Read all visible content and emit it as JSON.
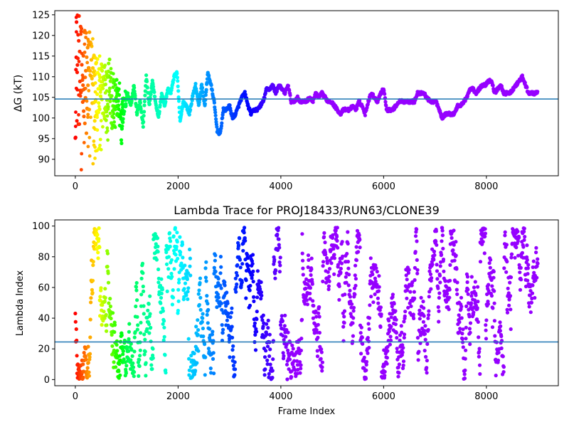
{
  "chart_data": [
    {
      "type": "scatter",
      "title": "",
      "xlabel": "",
      "ylabel": "ΔG (kT)",
      "xlim": [
        -400,
        9400
      ],
      "ylim": [
        86,
        126
      ],
      "xticks": [
        0,
        2000,
        4000,
        6000,
        8000
      ],
      "yticks": [
        90,
        95,
        100,
        105,
        110,
        115,
        120,
        125
      ],
      "hline": 104.6,
      "hline_color": "#1f77b4",
      "colormap": "rainbow (red early frames → violet late frames)",
      "grid": false,
      "trace": [
        [
          0,
          110
        ],
        [
          60,
          112
        ],
        [
          120,
          108
        ],
        [
          180,
          112
        ],
        [
          240,
          106
        ],
        [
          300,
          114
        ],
        [
          360,
          106
        ],
        [
          420,
          108
        ],
        [
          480,
          104
        ],
        [
          540,
          108
        ],
        [
          600,
          104
        ],
        [
          660,
          110
        ],
        [
          720,
          102
        ],
        [
          780,
          106
        ],
        [
          840,
          104
        ],
        [
          900,
          96
        ],
        [
          960,
          104
        ],
        [
          1020,
          106
        ],
        [
          1080,
          103
        ],
        [
          1140,
          108
        ],
        [
          1200,
          101
        ],
        [
          1260,
          104
        ],
        [
          1320,
          98
        ],
        [
          1380,
          110
        ],
        [
          1440,
          103
        ],
        [
          1500,
          109
        ],
        [
          1560,
          104
        ],
        [
          1620,
          100
        ],
        [
          1680,
          106
        ],
        [
          1740,
          103
        ],
        [
          1800,
          107
        ],
        [
          1860,
          106
        ],
        [
          1920,
          110
        ],
        [
          1980,
          111
        ],
        [
          2040,
          99
        ],
        [
          2100,
          104
        ],
        [
          2160,
          103
        ],
        [
          2220,
          101
        ],
        [
          2280,
          105
        ],
        [
          2340,
          108
        ],
        [
          2400,
          103
        ],
        [
          2460,
          108
        ],
        [
          2520,
          103
        ],
        [
          2580,
          111
        ],
        [
          2640,
          108
        ],
        [
          2700,
          104
        ],
        [
          2760,
          97
        ],
        [
          2820,
          96
        ],
        [
          2880,
          102
        ],
        [
          2940,
          102
        ],
        [
          3000,
          103
        ],
        [
          3060,
          100
        ],
        [
          3120,
          101
        ],
        [
          3180,
          103
        ],
        [
          3240,
          105
        ],
        [
          3300,
          106
        ],
        [
          3360,
          103
        ],
        [
          3420,
          101
        ],
        [
          3480,
          102
        ],
        [
          3540,
          102
        ],
        [
          3600,
          103
        ],
        [
          3660,
          104
        ],
        [
          3720,
          107
        ],
        [
          3780,
          107
        ],
        [
          3840,
          108
        ],
        [
          3900,
          106
        ],
        [
          3960,
          108
        ],
        [
          4020,
          107
        ],
        [
          4080,
          106
        ],
        [
          4140,
          108
        ],
        [
          4200,
          104
        ],
        [
          4260,
          104
        ],
        [
          4320,
          105
        ],
        [
          4380,
          104
        ],
        [
          4440,
          104
        ],
        [
          4500,
          104
        ],
        [
          4560,
          105
        ],
        [
          4620,
          104
        ],
        [
          4680,
          106
        ],
        [
          4740,
          105
        ],
        [
          4800,
          106
        ],
        [
          4860,
          105
        ],
        [
          4920,
          104
        ],
        [
          4980,
          104
        ],
        [
          5040,
          103
        ],
        [
          5100,
          102
        ],
        [
          5160,
          101
        ],
        [
          5220,
          102
        ],
        [
          5280,
          102
        ],
        [
          5340,
          102
        ],
        [
          5400,
          103
        ],
        [
          5460,
          102
        ],
        [
          5520,
          104
        ],
        [
          5580,
          103
        ],
        [
          5640,
          101
        ],
        [
          5700,
          104
        ],
        [
          5760,
          106
        ],
        [
          5820,
          105
        ],
        [
          5880,
          104
        ],
        [
          5940,
          106
        ],
        [
          6000,
          107
        ],
        [
          6060,
          102
        ],
        [
          6120,
          102
        ],
        [
          6180,
          102
        ],
        [
          6240,
          103
        ],
        [
          6300,
          104
        ],
        [
          6360,
          104
        ],
        [
          6420,
          104
        ],
        [
          6480,
          104
        ],
        [
          6540,
          104
        ],
        [
          6600,
          104
        ],
        [
          6660,
          106
        ],
        [
          6720,
          106
        ],
        [
          6780,
          106
        ],
        [
          6840,
          105
        ],
        [
          6900,
          104
        ],
        [
          6960,
          104
        ],
        [
          7020,
          104
        ],
        [
          7080,
          102
        ],
        [
          7140,
          100
        ],
        [
          7200,
          101
        ],
        [
          7260,
          101
        ],
        [
          7320,
          101
        ],
        [
          7380,
          101
        ],
        [
          7440,
          103
        ],
        [
          7500,
          103
        ],
        [
          7560,
          104
        ],
        [
          7620,
          105
        ],
        [
          7680,
          107
        ],
        [
          7740,
          107
        ],
        [
          7800,
          106
        ],
        [
          7860,
          107
        ],
        [
          7920,
          108
        ],
        [
          7980,
          108
        ],
        [
          8040,
          109
        ],
        [
          8100,
          109
        ],
        [
          8160,
          106
        ],
        [
          8220,
          107
        ],
        [
          8280,
          108
        ],
        [
          8340,
          106
        ],
        [
          8400,
          106
        ],
        [
          8460,
          106
        ],
        [
          8520,
          107
        ],
        [
          8580,
          108
        ],
        [
          8640,
          109
        ],
        [
          8700,
          110
        ],
        [
          8760,
          108
        ],
        [
          8820,
          106
        ],
        [
          8880,
          106
        ],
        [
          8940,
          106
        ],
        [
          9000,
          106
        ]
      ]
    },
    {
      "type": "scatter",
      "title": "Lambda Trace for PROJ18433/RUN63/CLONE39",
      "xlabel": "Frame Index",
      "ylabel": "Lambda Index",
      "xlim": [
        -400,
        9400
      ],
      "ylim": [
        -4,
        104
      ],
      "xticks": [
        0,
        2000,
        4000,
        6000,
        8000
      ],
      "yticks": [
        0,
        20,
        40,
        60,
        80,
        100
      ],
      "hline": 24.5,
      "hline_color": "#1f77b4",
      "colormap": "rainbow (red early frames → violet late frames)",
      "grid": false
    }
  ]
}
